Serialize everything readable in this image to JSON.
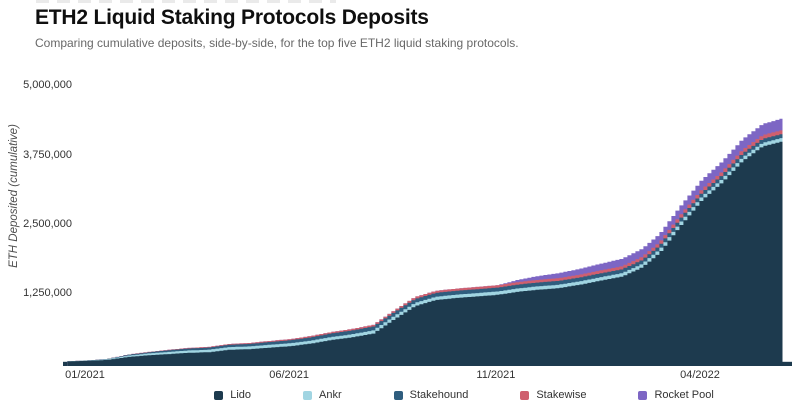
{
  "header": {
    "title": "ETH2 Liquid Staking Protocols Deposits",
    "subtitle": "Comparing cumulative deposits, side-by-side, for the top five ETH2 liquid staking protocols."
  },
  "chart_data": {
    "type": "area",
    "stacking": "stacked",
    "title": "ETH2 Liquid Staking Protocols Deposits",
    "xlabel": "",
    "ylabel": "ETH Deposited (cumulative)",
    "ylim": [
      0,
      5000000
    ],
    "grid": false,
    "legend_position": "bottom",
    "background": "#ffffff",
    "axis_color": "#1d3a4e",
    "x": [
      "2020-12-19",
      "2021-01-01",
      "2021-01-16",
      "2021-02-01",
      "2021-02-16",
      "2021-03-01",
      "2021-03-16",
      "2021-04-01",
      "2021-04-16",
      "2021-05-01",
      "2021-05-16",
      "2021-06-01",
      "2021-06-16",
      "2021-07-01",
      "2021-07-16",
      "2021-08-01",
      "2021-08-16",
      "2021-09-01",
      "2021-09-16",
      "2021-10-01",
      "2021-10-16",
      "2021-11-01",
      "2021-11-16",
      "2021-12-01",
      "2021-12-16",
      "2022-01-01",
      "2022-01-16",
      "2022-02-01",
      "2022-02-16",
      "2022-03-01",
      "2022-03-16",
      "2022-04-01",
      "2022-04-16",
      "2022-05-01",
      "2022-05-16",
      "2022-06-01"
    ],
    "x_ticks": [
      {
        "value": "2021-01-01",
        "label": "01/2021"
      },
      {
        "value": "2021-06-01",
        "label": "06/2021"
      },
      {
        "value": "2021-11-01",
        "label": "11/2021"
      },
      {
        "value": "2022-04-01",
        "label": "04/2022"
      }
    ],
    "y_ticks": [
      {
        "value": 1250000,
        "label": "1,250,000"
      },
      {
        "value": 2500000,
        "label": "2,500,000"
      },
      {
        "value": 3750000,
        "label": "3,750,000"
      },
      {
        "value": 5000000,
        "label": "5,000,000"
      }
    ],
    "series": [
      {
        "name": "Lido",
        "key": "lido",
        "color": "#1d3a4e",
        "values": [
          28000,
          40000,
          55000,
          110000,
          140000,
          158000,
          183000,
          194000,
          238000,
          249000,
          276000,
          304000,
          350000,
          414000,
          462000,
          531000,
          780000,
          1027000,
          1135000,
          1172000,
          1200000,
          1230000,
          1285000,
          1322000,
          1350000,
          1413000,
          1485000,
          1558000,
          1726000,
          1989000,
          2466000,
          2934000,
          3252000,
          3640000,
          3907000,
          4006000
        ]
      },
      {
        "name": "Ankr",
        "key": "ankr",
        "color": "#a1d5e2",
        "values": [
          2000,
          5000,
          12000,
          25000,
          32000,
          38000,
          42000,
          45000,
          48000,
          50000,
          52000,
          53000,
          54000,
          55000,
          56000,
          57000,
          58000,
          58000,
          59000,
          59000,
          60000,
          60000,
          60000,
          61000,
          61000,
          61000,
          62000,
          62000,
          62000,
          62000,
          63000,
          63000,
          63000,
          63000,
          64000,
          64000
        ]
      },
      {
        "name": "Stakehound",
        "key": "stakehound",
        "color": "#2f5d7e",
        "values": [
          0,
          1000,
          5000,
          15000,
          22000,
          30000,
          35000,
          38000,
          42000,
          45000,
          50000,
          55000,
          60000,
          65000,
          68000,
          70000,
          70000,
          70000,
          70000,
          70000,
          70000,
          70000,
          70000,
          70000,
          70000,
          70000,
          70000,
          70000,
          70000,
          70000,
          70000,
          70000,
          70000,
          70000,
          70000,
          70000
        ]
      },
      {
        "name": "Stakewise",
        "key": "stakewise",
        "color": "#cf5f6e",
        "values": [
          0,
          0,
          1000,
          3000,
          5000,
          8000,
          10000,
          12000,
          14000,
          16000,
          18000,
          20000,
          22000,
          25000,
          27000,
          30000,
          32000,
          35000,
          37000,
          39000,
          41000,
          43000,
          45000,
          47000,
          49000,
          51000,
          53000,
          55000,
          57000,
          59000,
          61000,
          63000,
          65000,
          67000,
          69000,
          70000
        ]
      },
      {
        "name": "Rocket Pool",
        "key": "rocket_pool",
        "color": "#7d66c4",
        "values": [
          0,
          0,
          0,
          0,
          0,
          0,
          0,
          0,
          0,
          0,
          0,
          0,
          0,
          0,
          0,
          0,
          0,
          0,
          0,
          0,
          0,
          0,
          40000,
          70000,
          90000,
          105000,
          120000,
          135000,
          145000,
          150000,
          160000,
          170000,
          180000,
          190000,
          200000,
          210000
        ]
      }
    ]
  }
}
